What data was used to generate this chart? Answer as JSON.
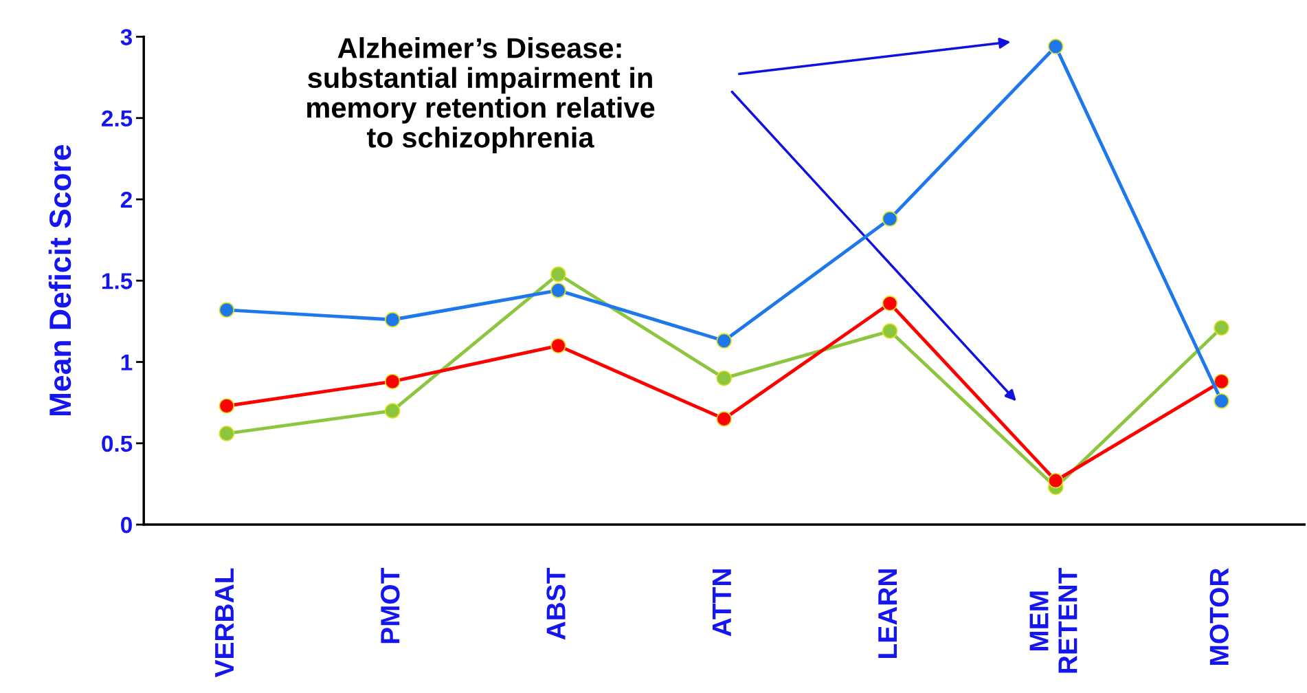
{
  "chart_data": {
    "type": "line",
    "ylabel": "Mean Deficit Score",
    "categories": [
      "VERBAL",
      "PMOT",
      "ABST",
      "ATTN",
      "LEARN",
      "MEM\nRETENT",
      "MOTOR"
    ],
    "series": [
      {
        "color": "#1e78ec",
        "values": [
          1.32,
          1.26,
          1.44,
          1.13,
          1.88,
          2.94,
          0.76
        ]
      },
      {
        "color": "#ff0000",
        "values": [
          0.73,
          0.88,
          1.1,
          0.65,
          1.36,
          0.27,
          0.88
        ]
      },
      {
        "color": "#8cc63f",
        "values": [
          0.56,
          0.7,
          1.54,
          0.9,
          1.19,
          0.23,
          1.21
        ]
      }
    ],
    "ylim": [
      0,
      3
    ],
    "yticks": [
      0,
      0.5,
      1,
      1.5,
      2,
      2.5,
      3
    ],
    "grid": false,
    "legend": false,
    "marker": "circle",
    "line_style": "solid",
    "annotations": [
      "Alzheimer’s Disease:\nsubstantial impairment in\nmemory retention relative\nto schizophrenia"
    ]
  }
}
